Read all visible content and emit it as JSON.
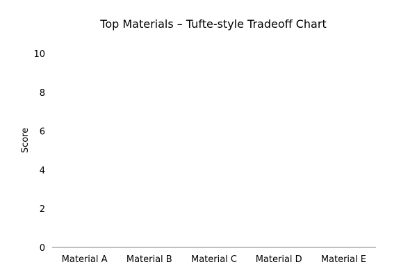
{
  "chart_data": {
    "type": "bar",
    "title": "Top Materials – Tufte-style Tradeoff Chart",
    "xlabel": "",
    "ylabel": "Score",
    "categories": [
      "Material A",
      "Material B",
      "Material C",
      "Material D",
      "Material E"
    ],
    "series": [
      {
        "values": [
          0,
          0,
          0,
          0,
          0
        ]
      }
    ],
    "yticks": [
      0,
      2,
      4,
      6,
      8,
      10
    ],
    "ylim": [
      0,
      10
    ],
    "grid": false,
    "legend": "none",
    "colors": {
      "axis": "#808080",
      "text": "#000000",
      "background": "#ffffff"
    }
  }
}
